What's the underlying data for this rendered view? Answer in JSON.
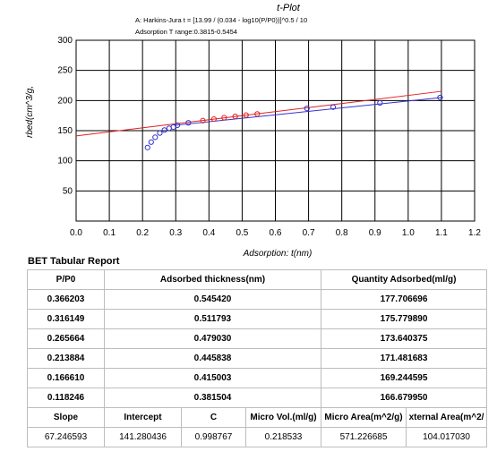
{
  "chart_data": {
    "type": "scatter",
    "title": "t-Plot",
    "subtitle_lines": [
      "A: Harkins-Jura t = [13.99 / (0.034 - log10(P/P0))]^0.5 / 10",
      "Adsorption T range:0.3815-0.5454"
    ],
    "xlabel": "Adsorption: t(nm)",
    "ylabel": "rbed(cm^3/g, ",
    "xlim": [
      0.0,
      1.2
    ],
    "ylim": [
      0,
      300
    ],
    "x_ticks": [
      "0.0",
      "0.1",
      "0.2",
      "0.3",
      "0.4",
      "0.5",
      "0.6",
      "0.7",
      "0.8",
      "0.9",
      "1.0",
      "1.1",
      "1.2"
    ],
    "y_ticks": [
      "50",
      "100",
      "150",
      "200",
      "250",
      "300"
    ],
    "grid": true,
    "series": [
      {
        "color": "#3333cc",
        "marker": "circle",
        "x": [
          0.215,
          0.226,
          0.238,
          0.252,
          0.266,
          0.28,
          0.293,
          0.305,
          0.338,
          0.695,
          0.774,
          0.915,
          1.096
        ],
        "y": [
          122,
          131,
          139,
          146,
          151,
          154,
          156,
          159,
          163,
          187,
          189,
          196,
          205
        ]
      },
      {
        "color": "#e02020",
        "marker": "circle",
        "x": [
          0.3815,
          0.415,
          0.4458,
          0.479,
          0.5118,
          0.5454
        ],
        "y": [
          166.68,
          169.24,
          171.48,
          173.64,
          175.78,
          177.71
        ]
      }
    ],
    "lines": [
      {
        "color": "#e02020",
        "x": [
          0.0,
          1.1
        ],
        "y": [
          141.28,
          215.25
        ]
      },
      {
        "color": "#3333cc",
        "x": [
          0.3,
          1.1
        ],
        "y": [
          159.0,
          205.0
        ]
      }
    ]
  },
  "report": {
    "title": "BET Tabular Report",
    "headers": [
      "P/P0",
      "Adsorbed thickness(nm)",
      "Quantity Adsorbed(ml/g)"
    ],
    "rows": [
      [
        "0.366203",
        "0.545420",
        "177.706696"
      ],
      [
        "0.316149",
        "0.511793",
        "175.779890"
      ],
      [
        "0.265664",
        "0.479030",
        "173.640375"
      ],
      [
        "0.213884",
        "0.445838",
        "171.481683"
      ],
      [
        "0.166610",
        "0.415003",
        "169.244595"
      ],
      [
        "0.118246",
        "0.381504",
        "166.679950"
      ]
    ],
    "summary_headers": [
      "Slope",
      "Intercept",
      "C",
      "Micro Vol.(ml/g)",
      "Micro Area(m^2/g)",
      "xternal Area(m^2/"
    ],
    "summary_values": [
      "67.246593",
      "141.280436",
      "0.998767",
      "0.218533",
      "571.226685",
      "104.017030"
    ]
  }
}
